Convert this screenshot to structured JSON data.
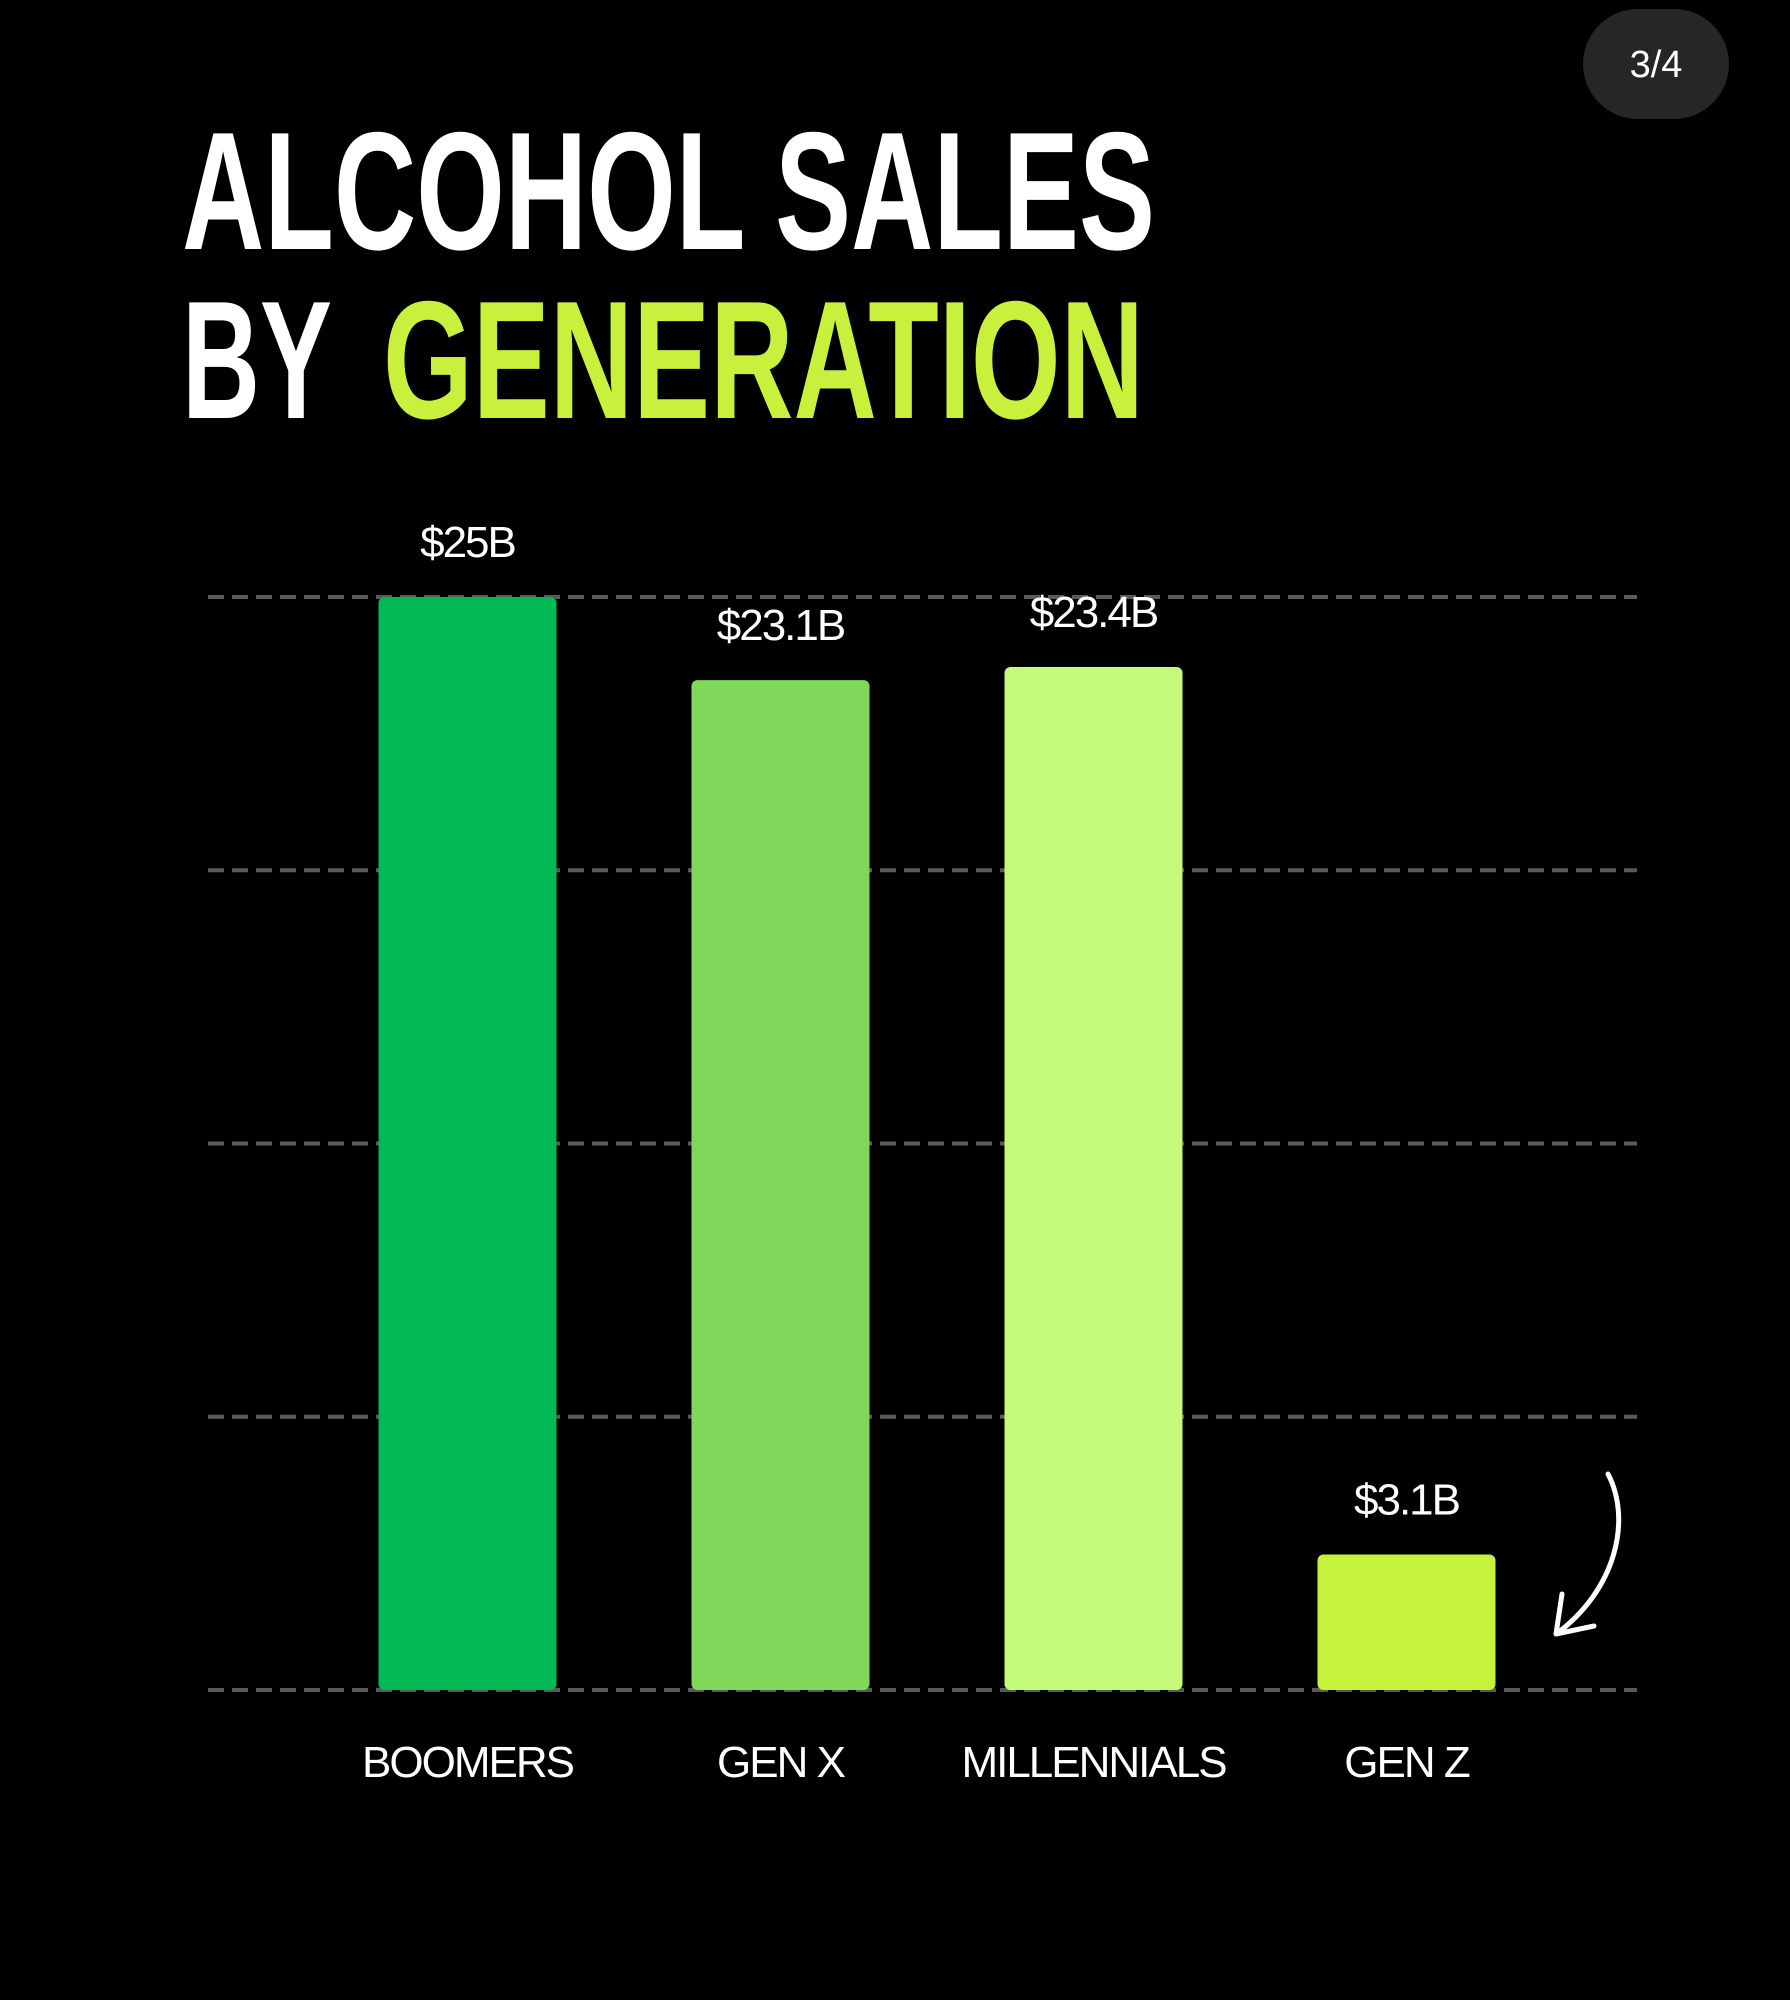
{
  "page_indicator": "3/4",
  "chart_data": {
    "type": "bar",
    "title": {
      "line1": "ALCOHOL SALES",
      "line2": "BY",
      "highlight": "GENERATION"
    },
    "categories": [
      "BOOMERS",
      "GEN X",
      "MILLENNIALS",
      "GEN Z"
    ],
    "values": [
      25,
      23.1,
      23.4,
      3.1
    ],
    "value_labels": [
      "$25B",
      "$23.1B",
      "$23.4B",
      "$3.1B"
    ],
    "colors": [
      "#00b954",
      "#7fd85a",
      "#c4f97a",
      "#c5f23a"
    ],
    "title_color": "#ffffff",
    "highlight_color": "#c8f03c",
    "ylim": [
      0,
      25
    ],
    "yticks": [
      0,
      6.25,
      12.5,
      18.75,
      25
    ],
    "grid": true
  }
}
